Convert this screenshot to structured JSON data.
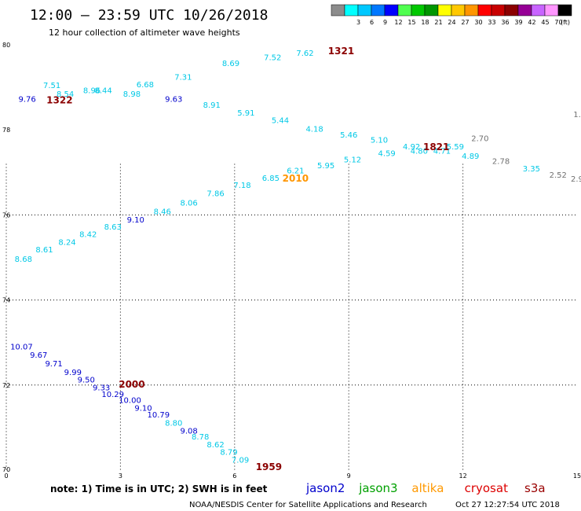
{
  "header": {
    "title": "12:00 – 23:59 UTC 10/26/2018",
    "subtitle": "12 hour collection of altimeter wave heights"
  },
  "color_scale": {
    "unit": "(ft)",
    "bins": [
      {
        "label": "",
        "color": "#8c8c8c"
      },
      {
        "label": "3",
        "color": "#00ffff"
      },
      {
        "label": "6",
        "color": "#00c8ff"
      },
      {
        "label": "9",
        "color": "#0078ff"
      },
      {
        "label": "12",
        "color": "#0000ff"
      },
      {
        "label": "15",
        "color": "#50ff50"
      },
      {
        "label": "18",
        "color": "#00c800"
      },
      {
        "label": "21",
        "color": "#009600"
      },
      {
        "label": "24",
        "color": "#ffff00"
      },
      {
        "label": "27",
        "color": "#ffc800"
      },
      {
        "label": "30",
        "color": "#ff9600"
      },
      {
        "label": "33",
        "color": "#ff0000"
      },
      {
        "label": "36",
        "color": "#c80000"
      },
      {
        "label": "39",
        "color": "#8b0000"
      },
      {
        "label": "42",
        "color": "#960096"
      },
      {
        "label": "45",
        "color": "#c864ff"
      },
      {
        "label": "70",
        "color": "#ff96ff"
      },
      {
        "label": "",
        "color": "#000000"
      }
    ]
  },
  "footer": {
    "note": "note: 1) Time is in UTC; 2) SWH is in feet",
    "satellites": [
      {
        "name": "jason2",
        "color": "#0000cc"
      },
      {
        "name": "jason3",
        "color": "#00a000"
      },
      {
        "name": "altika",
        "color": "#ff9900"
      },
      {
        "name": "cryosat",
        "color": "#dd0000"
      },
      {
        "name": "s3a",
        "color": "#990000"
      }
    ],
    "credit": "NOAA/NESDIS Center for Satellite Applications and Research",
    "timestamp": "Oct 27 12:27:54 UTC 2018"
  },
  "chart_data": {
    "type": "scatter",
    "title": "12:00 – 23:59 UTC 10/26/2018",
    "subtitle": "12 hour collection of altimeter wave heights",
    "xlabel": "",
    "ylabel": "",
    "xlim": [
      0,
      15
    ],
    "ylim": [
      70,
      80
    ],
    "x_ticks": [
      "0",
      "3",
      "6",
      "9",
      "12",
      "15"
    ],
    "y_ticks": [
      "80",
      "78",
      "76",
      "74",
      "72",
      "70"
    ],
    "grid": true,
    "colors": {
      "gray": "#707070",
      "cyan": "#00c8e6",
      "blue": "#0000cc",
      "darkred": "#8b0000",
      "orange": "#ff9600"
    },
    "points": [
      {
        "x": 0.55,
        "y": 78.66,
        "v": "9.76",
        "c": "blue"
      },
      {
        "x": 1.2,
        "y": 78.98,
        "v": "7.51",
        "c": "cyan"
      },
      {
        "x": 1.55,
        "y": 78.78,
        "v": "8.54",
        "c": "cyan"
      },
      {
        "x": 2.25,
        "y": 78.86,
        "v": "8.96",
        "c": "cyan"
      },
      {
        "x": 2.55,
        "y": 78.86,
        "v": "8.44",
        "c": "cyan"
      },
      {
        "x": 3.3,
        "y": 78.78,
        "v": "8.98",
        "c": "cyan"
      },
      {
        "x": 3.65,
        "y": 79.0,
        "v": "6.68",
        "c": "cyan"
      },
      {
        "x": 4.4,
        "y": 78.66,
        "v": "9.63",
        "c": "blue"
      },
      {
        "x": 4.65,
        "y": 79.18,
        "v": "7.31",
        "c": "cyan"
      },
      {
        "x": 5.4,
        "y": 78.52,
        "v": "8.91",
        "c": "cyan"
      },
      {
        "x": 5.9,
        "y": 79.5,
        "v": "8.69",
        "c": "cyan"
      },
      {
        "x": 6.3,
        "y": 78.34,
        "v": "5.91",
        "c": "cyan"
      },
      {
        "x": 7.0,
        "y": 79.64,
        "v": "7.52",
        "c": "cyan"
      },
      {
        "x": 7.2,
        "y": 78.16,
        "v": "5.44",
        "c": "cyan"
      },
      {
        "x": 7.85,
        "y": 79.74,
        "v": "7.62",
        "c": "cyan"
      },
      {
        "x": 8.1,
        "y": 77.96,
        "v": "4.18",
        "c": "cyan"
      },
      {
        "x": 9.0,
        "y": 77.82,
        "v": "5.46",
        "c": "cyan"
      },
      {
        "x": 9.8,
        "y": 77.7,
        "v": "5.10",
        "c": "cyan"
      },
      {
        "x": 10.65,
        "y": 77.54,
        "v": "4.92",
        "c": "cyan"
      },
      {
        "x": 10.85,
        "y": 77.44,
        "v": "4.80",
        "c": "cyan"
      },
      {
        "x": 11.45,
        "y": 77.44,
        "v": "4.71",
        "c": "cyan"
      },
      {
        "x": 11.8,
        "y": 77.54,
        "v": "5.59",
        "c": "cyan"
      },
      {
        "x": 12.45,
        "y": 77.74,
        "v": "2.70",
        "c": "gray"
      },
      {
        "x": 12.2,
        "y": 77.32,
        "v": "4.89",
        "c": "cyan"
      },
      {
        "x": 13.0,
        "y": 77.2,
        "v": "2.78",
        "c": "gray"
      },
      {
        "x": 13.8,
        "y": 77.02,
        "v": "3.35",
        "c": "cyan"
      },
      {
        "x": 14.5,
        "y": 76.88,
        "v": "2.52",
        "c": "gray"
      },
      {
        "x": 15.0,
        "y": 76.78,
        "v": "2.9",
        "c": "gray"
      },
      {
        "x": 15.0,
        "y": 78.3,
        "v": "1.",
        "c": "gray"
      },
      {
        "x": 9.1,
        "y": 77.24,
        "v": "5.12",
        "c": "cyan"
      },
      {
        "x": 10.0,
        "y": 77.38,
        "v": "4.59",
        "c": "cyan"
      },
      {
        "x": 8.4,
        "y": 77.1,
        "v": "5.95",
        "c": "cyan"
      },
      {
        "x": 7.6,
        "y": 76.98,
        "v": "6.21",
        "c": "cyan"
      },
      {
        "x": 6.95,
        "y": 76.8,
        "v": "6.85",
        "c": "cyan"
      },
      {
        "x": 6.2,
        "y": 76.64,
        "v": "7.18",
        "c": "cyan"
      },
      {
        "x": 5.5,
        "y": 76.44,
        "v": "7.86",
        "c": "cyan"
      },
      {
        "x": 4.8,
        "y": 76.22,
        "v": "8.06",
        "c": "cyan"
      },
      {
        "x": 4.1,
        "y": 76.02,
        "v": "8.46",
        "c": "cyan"
      },
      {
        "x": 3.4,
        "y": 75.82,
        "v": "9.10",
        "c": "blue"
      },
      {
        "x": 2.8,
        "y": 75.66,
        "v": "8.63",
        "c": "cyan"
      },
      {
        "x": 2.15,
        "y": 75.48,
        "v": "8.42",
        "c": "cyan"
      },
      {
        "x": 1.6,
        "y": 75.3,
        "v": "8.24",
        "c": "cyan"
      },
      {
        "x": 1.0,
        "y": 75.12,
        "v": "8.61",
        "c": "cyan"
      },
      {
        "x": 0.45,
        "y": 74.9,
        "v": "8.68",
        "c": "cyan"
      },
      {
        "x": 0.4,
        "y": 72.84,
        "v": "10.07",
        "c": "blue"
      },
      {
        "x": 0.85,
        "y": 72.64,
        "v": "9.67",
        "c": "blue"
      },
      {
        "x": 1.25,
        "y": 72.44,
        "v": "9.71",
        "c": "blue"
      },
      {
        "x": 1.75,
        "y": 72.24,
        "v": "9.99",
        "c": "blue"
      },
      {
        "x": 2.1,
        "y": 72.06,
        "v": "9.50",
        "c": "blue"
      },
      {
        "x": 2.5,
        "y": 71.88,
        "v": "9.33",
        "c": "blue"
      },
      {
        "x": 2.8,
        "y": 71.72,
        "v": "10.29",
        "c": "blue"
      },
      {
        "x": 3.25,
        "y": 71.58,
        "v": "10.00",
        "c": "blue"
      },
      {
        "x": 3.6,
        "y": 71.4,
        "v": "9.10",
        "c": "blue"
      },
      {
        "x": 4.0,
        "y": 71.24,
        "v": "10.79",
        "c": "blue"
      },
      {
        "x": 4.4,
        "y": 71.04,
        "v": "8.80",
        "c": "cyan"
      },
      {
        "x": 4.8,
        "y": 70.86,
        "v": "9.08",
        "c": "blue"
      },
      {
        "x": 5.1,
        "y": 70.72,
        "v": "8.78",
        "c": "cyan"
      },
      {
        "x": 5.5,
        "y": 70.54,
        "v": "8.62",
        "c": "cyan"
      },
      {
        "x": 5.85,
        "y": 70.36,
        "v": "8.79",
        "c": "cyan"
      },
      {
        "x": 6.15,
        "y": 70.18,
        "v": "7.09",
        "c": "cyan"
      }
    ],
    "time_labels": [
      {
        "x": 8.8,
        "y": 79.78,
        "v": "1321",
        "c": "darkred"
      },
      {
        "x": 1.4,
        "y": 78.62,
        "v": "1322",
        "c": "darkred"
      },
      {
        "x": 11.3,
        "y": 77.52,
        "v": "1821",
        "c": "darkred"
      },
      {
        "x": 7.6,
        "y": 76.78,
        "v": "2010",
        "c": "orange"
      },
      {
        "x": 3.3,
        "y": 71.94,
        "v": "2000",
        "c": "darkred"
      },
      {
        "x": 6.9,
        "y": 70.0,
        "v": "1959",
        "c": "darkred"
      }
    ]
  }
}
